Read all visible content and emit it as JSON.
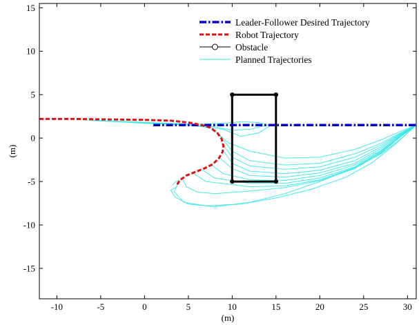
{
  "chart_data": {
    "type": "line",
    "title": "",
    "xlabel": "(m)",
    "ylabel": "(m)",
    "xlim": [
      -12,
      31
    ],
    "ylim": [
      -18.5,
      15.5
    ],
    "xticks": [
      -10,
      -5,
      0,
      5,
      10,
      15,
      20,
      25,
      30
    ],
    "yticks": [
      -15,
      -10,
      -5,
      0,
      5,
      10,
      15
    ],
    "xtick_labels": [
      "-10",
      "-5",
      "0",
      "5",
      "10",
      "15",
      "20",
      "25",
      "30"
    ],
    "ytick_labels": [
      "-15",
      "-10",
      "-5",
      "0",
      "5",
      "10",
      "15"
    ],
    "grid": false,
    "legend_position": "top-right",
    "series": [
      {
        "name": "Leader-Follower Desired Trajectory",
        "color": "#0000cc",
        "style": "dash-dot",
        "x": [
          1,
          31
        ],
        "y": [
          1.5,
          1.5
        ]
      },
      {
        "name": "Robot Trajectory",
        "color": "#dd1111",
        "style": "dashed",
        "x": [
          -12,
          -8,
          -4,
          0,
          3,
          5,
          6.5,
          7.5,
          8.3,
          8.8,
          9.0,
          8.9,
          8.5,
          7.8,
          6.8,
          5.8,
          4.8,
          4.1,
          3.8,
          3.7
        ],
        "y": [
          2.2,
          2.2,
          2.15,
          2.1,
          2.0,
          1.8,
          1.5,
          1.2,
          0.6,
          -0.1,
          -0.9,
          -1.6,
          -2.3,
          -3.0,
          -3.5,
          -3.9,
          -4.3,
          -4.8,
          -5.2,
          -5.6
        ]
      },
      {
        "name": "Obstacle",
        "color": "#000000",
        "style": "solid-circle-markers",
        "x": [
          10,
          15,
          15,
          10,
          10
        ],
        "y": [
          5,
          5,
          -5,
          -5,
          5
        ]
      },
      {
        "name": "Planned Trajectories",
        "color": "#33e6e6",
        "style": "solid"
      }
    ],
    "planned_trajectories": [
      {
        "x": [
          -7,
          -2,
          3,
          6,
          9,
          11,
          13,
          14
        ],
        "y": [
          2.1,
          1.9,
          1.7,
          1.6,
          1.7,
          1.9,
          1.8,
          1.5
        ]
      },
      {
        "x": [
          -6,
          -1,
          4,
          8,
          10,
          12,
          14
        ],
        "y": [
          2.0,
          1.8,
          1.6,
          1.3,
          0.9,
          1.0,
          1.5
        ]
      },
      {
        "x": [
          -5,
          0,
          5,
          9,
          11,
          13,
          14.5
        ],
        "y": [
          2.0,
          1.7,
          1.5,
          1.0,
          0.2,
          0.6,
          1.5
        ]
      },
      {
        "x": [
          7.6,
          9.5,
          12,
          16,
          20,
          24,
          27,
          29,
          31
        ],
        "y": [
          1.2,
          -0.5,
          -1.5,
          -2.3,
          -2.2,
          -1.3,
          -0.2,
          0.7,
          1.5
        ]
      },
      {
        "x": [
          8.4,
          10,
          12,
          16,
          20,
          24,
          27,
          29,
          31
        ],
        "y": [
          0.5,
          -1.5,
          -2.6,
          -3.1,
          -2.9,
          -1.8,
          -0.6,
          0.5,
          1.5
        ]
      },
      {
        "x": [
          8.8,
          10,
          12,
          16,
          20,
          24,
          27,
          29,
          31
        ],
        "y": [
          -0.5,
          -2.2,
          -3.2,
          -3.6,
          -3.3,
          -2.2,
          -0.8,
          0.4,
          1.5
        ]
      },
      {
        "x": [
          8.9,
          10,
          12,
          16,
          20,
          24,
          27,
          29,
          31
        ],
        "y": [
          -1.3,
          -2.9,
          -3.8,
          -4.1,
          -3.7,
          -2.6,
          -1.0,
          0.3,
          1.5
        ]
      },
      {
        "x": [
          8.5,
          10,
          12,
          16,
          20,
          24,
          27,
          29,
          31
        ],
        "y": [
          -2.2,
          -3.5,
          -4.3,
          -4.5,
          -4.0,
          -2.9,
          -1.2,
          0.2,
          1.5
        ]
      },
      {
        "x": [
          7.6,
          9,
          12,
          16,
          20,
          24,
          27,
          29,
          31
        ],
        "y": [
          -3.1,
          -4.1,
          -4.8,
          -4.9,
          -4.3,
          -3.1,
          -1.4,
          0.1,
          1.5
        ]
      },
      {
        "x": [
          6.5,
          8,
          12,
          16,
          20,
          24,
          27,
          29,
          31
        ],
        "y": [
          -3.6,
          -4.6,
          -5.2,
          -5.2,
          -4.6,
          -3.3,
          -1.5,
          0.1,
          1.5
        ]
      },
      {
        "x": [
          5.5,
          7,
          12,
          16,
          20,
          24,
          27,
          29,
          31
        ],
        "y": [
          -4.0,
          -5.0,
          -5.6,
          -5.5,
          -4.8,
          -3.4,
          -1.6,
          0.0,
          1.5
        ]
      },
      {
        "x": [
          4.3,
          4.8,
          6,
          8,
          12,
          16,
          20,
          24,
          27,
          29,
          31
        ],
        "y": [
          -4.6,
          -5.6,
          -6.2,
          -6.4,
          -6.1,
          -5.7,
          -4.9,
          -3.5,
          -1.7,
          0.0,
          1.5
        ]
      },
      {
        "x": [
          3.8,
          3.4,
          4.5,
          7,
          11,
          15,
          19,
          23,
          26,
          28.5,
          31
        ],
        "y": [
          -5.2,
          -6.2,
          -7.4,
          -7.8,
          -7.6,
          -6.9,
          -5.9,
          -4.5,
          -2.8,
          -0.8,
          1.5
        ]
      },
      {
        "x": [
          3.7,
          3.0,
          3.5,
          5.0,
          8,
          12,
          16,
          20,
          24,
          27,
          29,
          31
        ],
        "y": [
          -5.6,
          -6.0,
          -6.8,
          -7.6,
          -7.9,
          -7.4,
          -6.4,
          -5.0,
          -3.4,
          -1.8,
          -0.3,
          1.5
        ]
      },
      {
        "x": [
          4.4,
          3.6,
          3.2
        ],
        "y": [
          -4.7,
          -5.0,
          -5.4
        ]
      }
    ]
  }
}
